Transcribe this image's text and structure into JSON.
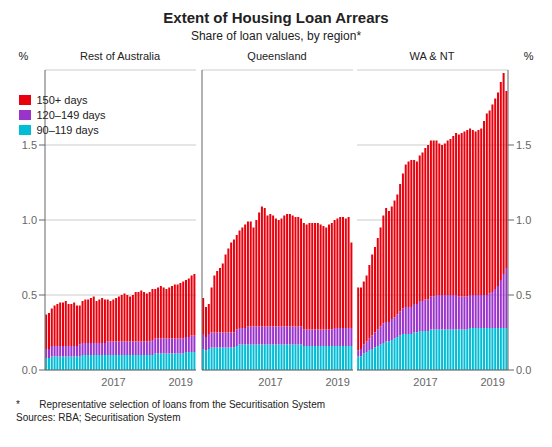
{
  "title": "Extent of Housing Loan Arrears",
  "subtitle": "Share of loan values, by region*",
  "annotations": [
    "*       Representative selection of loans from the Securitisation System",
    "Sources: RBA; Securitisation System"
  ],
  "chart_data": [
    {
      "type": "bar",
      "title": "Rest of Australia",
      "stacked": true,
      "grid": true,
      "legend": "upper left",
      "ylabel": "%",
      "categories": [
        null,
        null,
        null,
        null,
        null,
        null,
        null,
        null,
        null,
        null,
        null,
        null,
        null,
        null,
        null,
        null,
        null,
        null,
        null,
        null,
        null,
        null,
        null,
        null,
        "2017",
        null,
        null,
        null,
        null,
        null,
        null,
        null,
        null,
        null,
        null,
        null,
        null,
        null,
        null,
        null,
        null,
        null,
        null,
        null,
        null,
        null,
        null,
        null,
        "2019",
        null,
        null,
        null,
        null,
        null
      ],
      "ylim": [
        0.0,
        2.0
      ],
      "yticks": [
        {
          "value": 0.0,
          "label": "0.0"
        },
        {
          "value": 0.5,
          "label": "0.5"
        },
        {
          "value": 1.0,
          "label": "1.0"
        },
        {
          "value": 1.5,
          "label": "1.5"
        }
      ],
      "series": [
        {
          "name": "150+ days",
          "color": "#e8000d",
          "values": [
            0.23,
            0.24,
            0.25,
            0.27,
            0.28,
            0.29,
            0.29,
            0.3,
            0.28,
            0.28,
            0.29,
            0.27,
            0.26,
            0.28,
            0.29,
            0.29,
            0.3,
            0.31,
            0.28,
            0.29,
            0.3,
            0.29,
            0.28,
            0.27,
            0.28,
            0.29,
            0.3,
            0.31,
            0.32,
            0.31,
            0.3,
            0.31,
            0.33,
            0.33,
            0.34,
            0.33,
            0.32,
            0.33,
            0.34,
            0.33,
            0.34,
            0.35,
            0.34,
            0.33,
            0.34,
            0.35,
            0.36,
            0.36,
            0.37,
            0.38,
            0.38,
            0.39,
            0.4,
            0.41
          ]
        },
        {
          "name": "120–149 days",
          "color": "#9933cc",
          "values": [
            0.06,
            0.06,
            0.07,
            0.07,
            0.07,
            0.07,
            0.07,
            0.07,
            0.07,
            0.07,
            0.07,
            0.07,
            0.08,
            0.08,
            0.08,
            0.08,
            0.08,
            0.08,
            0.08,
            0.08,
            0.08,
            0.08,
            0.09,
            0.09,
            0.09,
            0.09,
            0.09,
            0.09,
            0.09,
            0.09,
            0.09,
            0.09,
            0.09,
            0.09,
            0.09,
            0.09,
            0.09,
            0.09,
            0.1,
            0.1,
            0.1,
            0.1,
            0.1,
            0.1,
            0.1,
            0.1,
            0.1,
            0.1,
            0.1,
            0.1,
            0.1,
            0.1,
            0.11,
            0.11
          ]
        },
        {
          "name": "90–119 days",
          "color": "#00bcd4",
          "values": [
            0.08,
            0.08,
            0.09,
            0.09,
            0.09,
            0.09,
            0.09,
            0.09,
            0.09,
            0.09,
            0.09,
            0.09,
            0.09,
            0.1,
            0.1,
            0.1,
            0.1,
            0.1,
            0.1,
            0.1,
            0.1,
            0.1,
            0.1,
            0.1,
            0.1,
            0.1,
            0.1,
            0.1,
            0.1,
            0.1,
            0.1,
            0.1,
            0.1,
            0.1,
            0.1,
            0.1,
            0.1,
            0.1,
            0.1,
            0.11,
            0.11,
            0.11,
            0.11,
            0.11,
            0.11,
            0.11,
            0.11,
            0.11,
            0.11,
            0.11,
            0.12,
            0.12,
            0.12,
            0.12
          ]
        }
      ]
    },
    {
      "type": "bar",
      "title": "Queensland",
      "stacked": true,
      "grid": true,
      "tick_labels": "x",
      "categories": [
        null,
        null,
        null,
        null,
        null,
        null,
        null,
        null,
        null,
        null,
        null,
        null,
        null,
        null,
        null,
        null,
        null,
        null,
        null,
        null,
        null,
        null,
        null,
        null,
        "2017",
        null,
        null,
        null,
        null,
        null,
        null,
        null,
        null,
        null,
        null,
        null,
        null,
        null,
        null,
        null,
        null,
        null,
        null,
        null,
        null,
        null,
        null,
        null,
        "2019",
        null,
        null,
        null,
        null,
        null
      ],
      "ylim": [
        0.0,
        2.0
      ],
      "yticks": [
        {
          "value": 0.0,
          "label": "0.0"
        },
        {
          "value": 0.5,
          "label": "0.5"
        },
        {
          "value": 1.0,
          "label": "1.0"
        },
        {
          "value": 1.5,
          "label": "1.5"
        }
      ],
      "series": [
        {
          "name": "150+ days",
          "color": "#e8000d",
          "values": [
            0.24,
            0.2,
            0.2,
            0.3,
            0.38,
            0.41,
            0.43,
            0.46,
            0.52,
            0.56,
            0.6,
            0.62,
            0.63,
            0.65,
            0.67,
            0.69,
            0.7,
            0.7,
            0.66,
            0.71,
            0.76,
            0.8,
            0.79,
            0.74,
            0.75,
            0.74,
            0.72,
            0.71,
            0.72,
            0.74,
            0.75,
            0.75,
            0.74,
            0.73,
            0.73,
            0.72,
            0.71,
            0.7,
            0.71,
            0.71,
            0.71,
            0.71,
            0.7,
            0.69,
            0.68,
            0.7,
            0.71,
            0.72,
            0.73,
            0.74,
            0.74,
            0.73,
            0.74,
            0.57
          ]
        },
        {
          "name": "120–149 days",
          "color": "#9933cc",
          "values": [
            0.1,
            0.09,
            0.1,
            0.1,
            0.1,
            0.1,
            0.1,
            0.1,
            0.1,
            0.1,
            0.1,
            0.1,
            0.11,
            0.11,
            0.11,
            0.11,
            0.12,
            0.12,
            0.12,
            0.12,
            0.12,
            0.12,
            0.12,
            0.12,
            0.12,
            0.12,
            0.12,
            0.12,
            0.12,
            0.12,
            0.12,
            0.12,
            0.12,
            0.12,
            0.12,
            0.12,
            0.11,
            0.11,
            0.11,
            0.11,
            0.11,
            0.11,
            0.11,
            0.11,
            0.11,
            0.11,
            0.11,
            0.12,
            0.12,
            0.12,
            0.12,
            0.12,
            0.12,
            0.12
          ]
        },
        {
          "name": "90–119 days",
          "color": "#00bcd4",
          "values": [
            0.14,
            0.13,
            0.14,
            0.15,
            0.15,
            0.15,
            0.15,
            0.15,
            0.15,
            0.15,
            0.15,
            0.15,
            0.16,
            0.17,
            0.17,
            0.17,
            0.17,
            0.17,
            0.17,
            0.17,
            0.17,
            0.17,
            0.17,
            0.17,
            0.17,
            0.17,
            0.17,
            0.17,
            0.17,
            0.17,
            0.17,
            0.17,
            0.17,
            0.17,
            0.17,
            0.17,
            0.16,
            0.16,
            0.16,
            0.16,
            0.16,
            0.16,
            0.16,
            0.16,
            0.16,
            0.16,
            0.16,
            0.16,
            0.16,
            0.16,
            0.16,
            0.16,
            0.16,
            0.16
          ]
        }
      ]
    },
    {
      "type": "bar",
      "title": "WA & NT",
      "stacked": true,
      "grid": true,
      "ylabel": "%",
      "categories": [
        null,
        null,
        null,
        null,
        null,
        null,
        null,
        null,
        null,
        null,
        null,
        null,
        null,
        null,
        null,
        null,
        null,
        null,
        null,
        null,
        null,
        null,
        null,
        null,
        "2017",
        null,
        null,
        null,
        null,
        null,
        null,
        null,
        null,
        null,
        null,
        null,
        null,
        null,
        null,
        null,
        null,
        null,
        null,
        null,
        null,
        null,
        null,
        null,
        "2019",
        null,
        null,
        null,
        null,
        null
      ],
      "ylim": [
        0.0,
        2.0
      ],
      "yticks": [
        {
          "value": 0.0,
          "label": "0.0"
        },
        {
          "value": 0.5,
          "label": "0.5"
        },
        {
          "value": 1.0,
          "label": "1.0"
        },
        {
          "value": 1.5,
          "label": "1.5"
        }
      ],
      "series": [
        {
          "name": "150+ days",
          "color": "#e8000d",
          "values": [
            0.42,
            0.41,
            0.42,
            0.44,
            0.49,
            0.54,
            0.57,
            0.61,
            0.66,
            0.72,
            0.76,
            0.74,
            0.75,
            0.78,
            0.8,
            0.85,
            0.9,
            0.95,
            0.97,
            0.98,
            0.96,
            0.95,
            0.97,
            0.99,
            1.01,
            1.03,
            1.04,
            1.04,
            1.03,
            1.01,
            1.0,
            1.01,
            1.03,
            1.04,
            1.06,
            1.08,
            1.08,
            1.09,
            1.1,
            1.11,
            1.11,
            1.1,
            1.09,
            1.1,
            1.11,
            1.16,
            1.21,
            1.22,
            1.25,
            1.27,
            1.29,
            1.32,
            1.34,
            1.18
          ]
        },
        {
          "name": "120–149 days",
          "color": "#9933cc",
          "values": [
            0.04,
            0.05,
            0.06,
            0.07,
            0.08,
            0.09,
            0.1,
            0.11,
            0.12,
            0.13,
            0.13,
            0.13,
            0.14,
            0.14,
            0.15,
            0.16,
            0.17,
            0.18,
            0.18,
            0.18,
            0.19,
            0.19,
            0.2,
            0.2,
            0.21,
            0.21,
            0.22,
            0.22,
            0.23,
            0.23,
            0.23,
            0.23,
            0.23,
            0.23,
            0.23,
            0.23,
            0.22,
            0.22,
            0.22,
            0.22,
            0.22,
            0.22,
            0.22,
            0.22,
            0.22,
            0.22,
            0.22,
            0.23,
            0.24,
            0.26,
            0.28,
            0.32,
            0.36,
            0.4
          ]
        },
        {
          "name": "90–119 days",
          "color": "#00bcd4",
          "values": [
            0.09,
            0.09,
            0.11,
            0.12,
            0.13,
            0.14,
            0.15,
            0.16,
            0.17,
            0.18,
            0.19,
            0.19,
            0.2,
            0.21,
            0.22,
            0.23,
            0.24,
            0.24,
            0.24,
            0.24,
            0.25,
            0.25,
            0.26,
            0.26,
            0.26,
            0.26,
            0.27,
            0.27,
            0.27,
            0.27,
            0.27,
            0.27,
            0.27,
            0.27,
            0.27,
            0.27,
            0.27,
            0.27,
            0.27,
            0.27,
            0.28,
            0.28,
            0.28,
            0.28,
            0.28,
            0.28,
            0.28,
            0.28,
            0.28,
            0.28,
            0.28,
            0.28,
            0.28,
            0.28
          ]
        }
      ]
    }
  ]
}
